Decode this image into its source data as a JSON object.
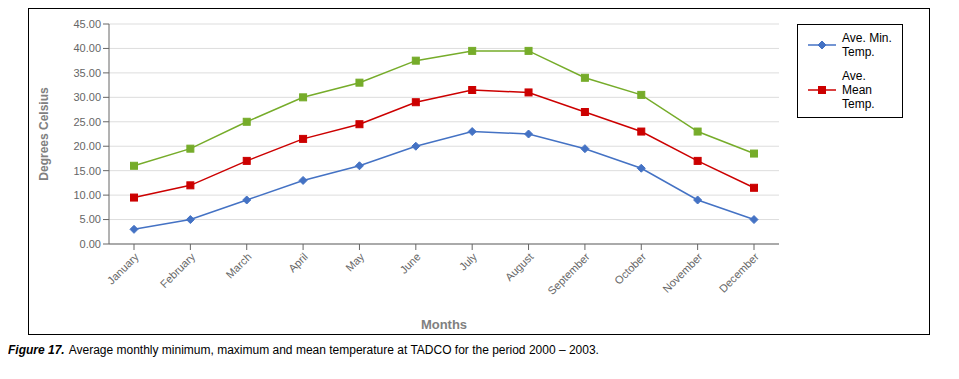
{
  "chart_data": {
    "type": "line",
    "categories": [
      "January",
      "February",
      "March",
      "April",
      "May",
      "June",
      "July",
      "August",
      "September",
      "October",
      "November",
      "December"
    ],
    "series": [
      {
        "name": "Ave. Min.\nTemp.",
        "color": "#4472C4",
        "marker": "diamond",
        "values": [
          3.0,
          5.0,
          9.0,
          13.0,
          16.0,
          20.0,
          23.0,
          22.5,
          19.5,
          15.5,
          9.0,
          5.0
        ]
      },
      {
        "name": "Ave.\nMean\nTemp.",
        "color": "#CC0000",
        "marker": "square",
        "values": [
          9.5,
          12.0,
          17.0,
          21.5,
          24.5,
          29.0,
          31.5,
          31.0,
          27.0,
          23.0,
          17.0,
          11.5
        ]
      },
      {
        "color": "#76AC2A",
        "marker": "square",
        "values": [
          16.0,
          19.5,
          25.0,
          30.0,
          33.0,
          37.5,
          39.5,
          39.5,
          34.0,
          30.5,
          23.0,
          18.5
        ]
      }
    ],
    "xlabel": "Months",
    "ylabel": "Degrees Celsius",
    "ylim": [
      0,
      45
    ],
    "yticks": [
      {
        "value": 0,
        "label": "0.00"
      },
      {
        "value": 5,
        "label": "5.00"
      },
      {
        "value": 10,
        "label": "10.00"
      },
      {
        "value": 15,
        "label": "15.00"
      },
      {
        "value": 20,
        "label": "20.00"
      },
      {
        "value": 25,
        "label": "25.00"
      },
      {
        "value": 30,
        "label": "30.00"
      },
      {
        "value": 35,
        "label": "35.00"
      },
      {
        "value": 40,
        "label": "40.00"
      },
      {
        "value": 45,
        "label": "45.00"
      }
    ],
    "grid": true,
    "legend": "right",
    "annotations": [
      "Figure 17.",
      "Average monthly minimum, maximum and mean temperature at TADCO for the period 2000 – 2003."
    ]
  }
}
